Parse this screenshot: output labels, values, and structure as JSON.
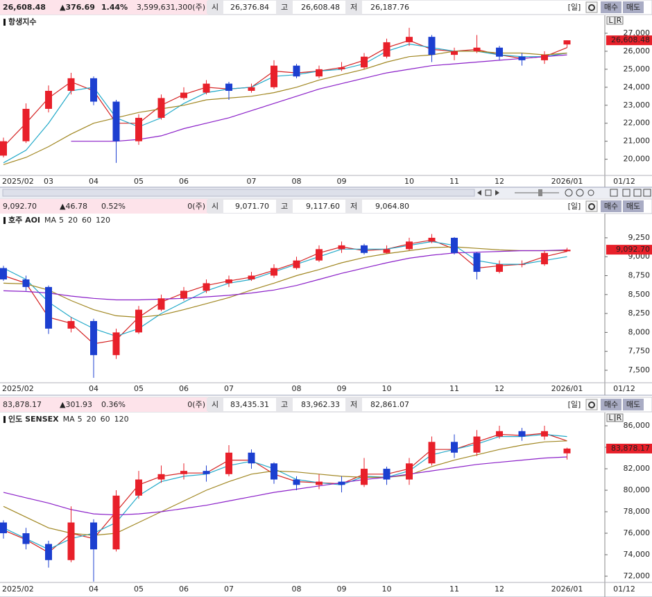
{
  "panels": [
    {
      "price": "26,608.48",
      "change": "▲376.69",
      "pct": "1.44%",
      "volume": "3,599,631,300(주)",
      "open_label": "시",
      "open": "26,376.84",
      "high_label": "고",
      "high": "26,608.48",
      "low_label": "저",
      "low": "26,187.76",
      "period": "[일]",
      "buy": "매수",
      "sell": "매도",
      "axis_buttons": [
        "L",
        "R"
      ]
    },
    {
      "price": "9,092.70",
      "change": "▲46.78",
      "pct": "0.52%",
      "volume": "0(주)",
      "open_label": "시",
      "open": "9,071.70",
      "high_label": "고",
      "high": "9,117.60",
      "low_label": "저",
      "low": "9,064.80",
      "period": "[일]",
      "buy": "매수",
      "sell": "매도"
    },
    {
      "price": "83,878.17",
      "change": "▲301.93",
      "pct": "0.36%",
      "volume": "0(주)",
      "open_label": "시",
      "open": "83,435.31",
      "high_label": "고",
      "high": "83,962.33",
      "low_label": "저",
      "low": "82,861.07",
      "period": "[일]",
      "buy": "매수",
      "sell": "매도",
      "axis_buttons": [
        "L",
        "R"
      ]
    }
  ],
  "chart_data": [
    {
      "type": "candlestick",
      "title": "항생지수",
      "date_label": "01/12",
      "up_color": "#e8202a",
      "down_color": "#1c3fd0",
      "categories": [
        "2025/02",
        null,
        "03",
        null,
        "04",
        null,
        "05",
        null,
        "06",
        null,
        null,
        "07",
        null,
        "08",
        null,
        "09",
        null,
        null,
        "10",
        null,
        "11",
        null,
        "12",
        null,
        null,
        "2026/01"
      ],
      "open": [
        20200,
        21000,
        22800,
        23800,
        24500,
        23200,
        21000,
        22300,
        23400,
        23700,
        24200,
        23800,
        24000,
        25200,
        24600,
        25000,
        25100,
        25700,
        26500,
        26800,
        25800,
        26000,
        26200,
        25700,
        25500,
        26376.84
      ],
      "high": [
        21200,
        23100,
        24100,
        24800,
        24600,
        23300,
        22500,
        23600,
        24000,
        24400,
        24300,
        24200,
        25500,
        25300,
        25200,
        25400,
        25900,
        26700,
        27300,
        26900,
        26200,
        26900,
        26300,
        25900,
        26000,
        26608.48
      ],
      "low": [
        20100,
        20900,
        22600,
        23600,
        23000,
        19800,
        20800,
        22200,
        23300,
        23600,
        23300,
        23700,
        23900,
        24500,
        24500,
        24900,
        25000,
        25600,
        26300,
        25400,
        25500,
        25900,
        25500,
        25200,
        25300,
        26187.76
      ],
      "close": [
        21000,
        22800,
        23800,
        24500,
        23200,
        21000,
        22300,
        23400,
        23700,
        24200,
        23800,
        24000,
        25200,
        24600,
        25000,
        25100,
        25700,
        26500,
        26800,
        25800,
        26000,
        26200,
        25700,
        25500,
        25800,
        26608.48
      ],
      "series": [
        {
          "color": "#d42020",
          "values": [
            20700,
            22000,
            23400,
            24300,
            23800,
            22000,
            22000,
            23000,
            23600,
            24000,
            23900,
            24000,
            24900,
            24800,
            24900,
            25100,
            25500,
            26200,
            26600,
            26100,
            26000,
            26100,
            25800,
            25600,
            25700,
            26200
          ]
        },
        {
          "color": "#1fa8c8",
          "values": [
            19800,
            20500,
            22000,
            23800,
            24000,
            22300,
            21800,
            22300,
            23100,
            23700,
            23900,
            24000,
            24600,
            24700,
            24900,
            25000,
            25300,
            26000,
            26400,
            26200,
            26000,
            26000,
            25800,
            25700,
            25700,
            25900
          ]
        },
        {
          "color": "#a08620",
          "values": [
            19700,
            20100,
            20700,
            21400,
            22000,
            22300,
            22600,
            22800,
            23000,
            23300,
            23400,
            23500,
            23700,
            24000,
            24400,
            24700,
            25000,
            25400,
            25700,
            25800,
            26000,
            26000,
            25900,
            25900,
            25800,
            25900
          ]
        },
        {
          "color": "#8a1ec8",
          "values": [
            null,
            null,
            null,
            21000,
            21000,
            21000,
            21100,
            21300,
            21700,
            22000,
            22300,
            22700,
            23100,
            23500,
            23900,
            24200,
            24500,
            24800,
            25000,
            25200,
            25300,
            25400,
            25500,
            25600,
            25700,
            25800
          ]
        }
      ],
      "ylim": [
        19100,
        28000
      ],
      "yticks": [
        {
          "value": 20000,
          "label": "20,000"
        },
        {
          "value": 21000,
          "label": "21,000"
        },
        {
          "value": 22000,
          "label": "22,000"
        },
        {
          "value": 23000,
          "label": "23,000"
        },
        {
          "value": 24000,
          "label": "24,000"
        },
        {
          "value": 25000,
          "label": "25,000"
        },
        {
          "value": 26000,
          "label": "26,000"
        },
        {
          "value": 27000,
          "label": "27,000"
        }
      ]
    },
    {
      "type": "candlestick",
      "title": "호주 AOI",
      "legend_prefix": "MA",
      "date_label": "01/12",
      "up_color": "#e8202a",
      "down_color": "#1c3fd0",
      "categories": [
        "2025/02",
        null,
        null,
        null,
        "04",
        null,
        "05",
        null,
        "06",
        null,
        "07",
        null,
        null,
        "08",
        null,
        "09",
        null,
        "10",
        null,
        null,
        "11",
        null,
        "12",
        null,
        null,
        "2026/01"
      ],
      "open": [
        8850,
        8700,
        8600,
        8050,
        8150,
        7700,
        8000,
        8300,
        8450,
        8550,
        8650,
        8700,
        8750,
        8850,
        8950,
        9100,
        9150,
        9050,
        9100,
        9200,
        9250,
        9050,
        8800,
        8900,
        8900,
        9071.7
      ],
      "high": [
        8880,
        8750,
        8620,
        8200,
        8180,
        8050,
        8350,
        8500,
        8600,
        8700,
        8750,
        8800,
        8900,
        9000,
        9150,
        9200,
        9170,
        9150,
        9250,
        9300,
        9260,
        9060,
        8950,
        8950,
        9080,
        9117.6
      ],
      "low": [
        8680,
        8550,
        7980,
        8000,
        7400,
        7650,
        7980,
        8280,
        8420,
        8520,
        8600,
        8680,
        8720,
        8830,
        8930,
        9050,
        9030,
        9040,
        9080,
        9180,
        9030,
        8700,
        8780,
        8860,
        8880,
        9064.8
      ],
      "close": [
        8700,
        8600,
        8050,
        8150,
        7700,
        8000,
        8300,
        8450,
        8550,
        8650,
        8700,
        8750,
        8850,
        8950,
        9100,
        9150,
        9050,
        9100,
        9200,
        9250,
        9050,
        8800,
        8900,
        8900,
        9050,
        9092.7
      ],
      "series": [
        {
          "name": "5",
          "color": "#d42020",
          "values": [
            8750,
            8650,
            8200,
            8120,
            7850,
            7900,
            8200,
            8400,
            8520,
            8620,
            8680,
            8730,
            8820,
            8920,
            9050,
            9130,
            9080,
            9100,
            9170,
            9220,
            9100,
            8850,
            8880,
            8900,
            9000,
            9070
          ]
        },
        {
          "name": "20",
          "color": "#1fa8c8",
          "values": [
            8850,
            8700,
            8400,
            8200,
            8050,
            7950,
            8050,
            8250,
            8400,
            8550,
            8650,
            8700,
            8800,
            8900,
            9000,
            9100,
            9100,
            9100,
            9150,
            9200,
            9150,
            8950,
            8900,
            8900,
            8950,
            9000
          ]
        },
        {
          "name": "60",
          "color": "#a08620",
          "values": [
            8650,
            8640,
            8560,
            8420,
            8300,
            8220,
            8200,
            8230,
            8300,
            8380,
            8460,
            8560,
            8650,
            8750,
            8830,
            8920,
            8990,
            9040,
            9080,
            9120,
            9130,
            9110,
            9090,
            9080,
            9080,
            9080
          ]
        },
        {
          "name": "120",
          "color": "#8a1ec8",
          "values": [
            8550,
            8540,
            8520,
            8480,
            8450,
            8430,
            8430,
            8440,
            8450,
            8470,
            8490,
            8520,
            8560,
            8620,
            8700,
            8780,
            8850,
            8920,
            8980,
            9020,
            9050,
            9060,
            9070,
            9080,
            9080,
            9090
          ]
        }
      ],
      "ylim": [
        7335,
        9570
      ],
      "yticks": [
        {
          "value": 7500,
          "label": "7,500"
        },
        {
          "value": 7750,
          "label": "7,750"
        },
        {
          "value": 8000,
          "label": "8,000"
        },
        {
          "value": 8250,
          "label": "8,250"
        },
        {
          "value": 8500,
          "label": "8,500"
        },
        {
          "value": 8750,
          "label": "8,750"
        },
        {
          "value": 9000,
          "label": "9,000"
        },
        {
          "value": 9250,
          "label": "9,250"
        }
      ]
    },
    {
      "type": "candlestick",
      "title": "인도 SENSEX",
      "legend_prefix": "MA",
      "date_label": "01/12",
      "up_color": "#e8202a",
      "down_color": "#1c3fd0",
      "categories": [
        "2025/02",
        null,
        null,
        null,
        "04",
        null,
        "05",
        null,
        "06",
        null,
        "07",
        null,
        null,
        "08",
        null,
        "09",
        null,
        "10",
        null,
        null,
        "11",
        null,
        "12",
        null,
        null,
        "2026/01"
      ],
      "open": [
        77000,
        76000,
        75000,
        73500,
        77000,
        74500,
        79500,
        81000,
        81500,
        81800,
        81500,
        83500,
        82500,
        81000,
        80500,
        80800,
        80500,
        82000,
        81000,
        82500,
        84500,
        83500,
        85000,
        85500,
        85000,
        83435.31
      ],
      "high": [
        77200,
        76500,
        75300,
        78500,
        77300,
        80000,
        81800,
        82300,
        82500,
        82300,
        84200,
        83800,
        82600,
        81300,
        81500,
        81300,
        83000,
        82200,
        83000,
        85000,
        85200,
        85600,
        86000,
        85800,
        86000,
        83962.33
      ],
      "low": [
        75500,
        74500,
        72800,
        73300,
        71500,
        74300,
        79200,
        80700,
        81000,
        80800,
        81300,
        82000,
        80600,
        80000,
        80100,
        79800,
        80300,
        80500,
        80500,
        82300,
        83000,
        83200,
        84800,
        84600,
        84700,
        82861.07
      ],
      "close": [
        76000,
        75000,
        73500,
        77000,
        74500,
        79500,
        81000,
        81500,
        81800,
        81500,
        83500,
        82500,
        81000,
        80500,
        80800,
        80500,
        82000,
        81000,
        82500,
        84500,
        83500,
        85000,
        85500,
        85000,
        85500,
        83878.17
      ],
      "series": [
        {
          "name": "5",
          "color": "#d42020",
          "values": [
            76300,
            75400,
            74200,
            76000,
            75500,
            78000,
            80500,
            81300,
            81600,
            81600,
            82800,
            82800,
            81500,
            80800,
            80700,
            80600,
            81500,
            81500,
            82000,
            83800,
            83800,
            84500,
            85200,
            85100,
            85300,
            84600
          ]
        },
        {
          "name": "20",
          "color": "#1fa8c8",
          "values": [
            76500,
            75500,
            74500,
            75500,
            76000,
            77000,
            79500,
            80800,
            81300,
            81500,
            82300,
            82700,
            82000,
            81000,
            80700,
            80500,
            81300,
            81200,
            81800,
            83300,
            83800,
            84300,
            85000,
            85000,
            85200,
            85000
          ]
        },
        {
          "name": "60",
          "color": "#a08620",
          "values": [
            78500,
            77500,
            76500,
            76000,
            75800,
            76000,
            77000,
            78000,
            79000,
            80000,
            80800,
            81500,
            81800,
            81700,
            81500,
            81300,
            81200,
            81200,
            81400,
            82200,
            82800,
            83300,
            83800,
            84200,
            84500,
            84600
          ]
        },
        {
          "name": "120",
          "color": "#8a1ec8",
          "values": [
            79800,
            79300,
            78800,
            78200,
            77800,
            77700,
            77800,
            78000,
            78300,
            78600,
            79000,
            79400,
            79800,
            80100,
            80400,
            80700,
            81000,
            81200,
            81500,
            81800,
            82100,
            82400,
            82600,
            82800,
            83000,
            83100
          ]
        }
      ],
      "ylim": [
        71420,
        87230
      ],
      "yticks": [
        {
          "value": 72000,
          "label": "72,000"
        },
        {
          "value": 74000,
          "label": "74,000"
        },
        {
          "value": 76000,
          "label": "76,000"
        },
        {
          "value": 78000,
          "label": "78,000"
        },
        {
          "value": 80000,
          "label": "80,000"
        },
        {
          "value": 82000,
          "label": "82,000"
        },
        {
          "value": 84000,
          "label": "84,000"
        },
        {
          "value": 86000,
          "label": "86,000"
        }
      ]
    }
  ]
}
